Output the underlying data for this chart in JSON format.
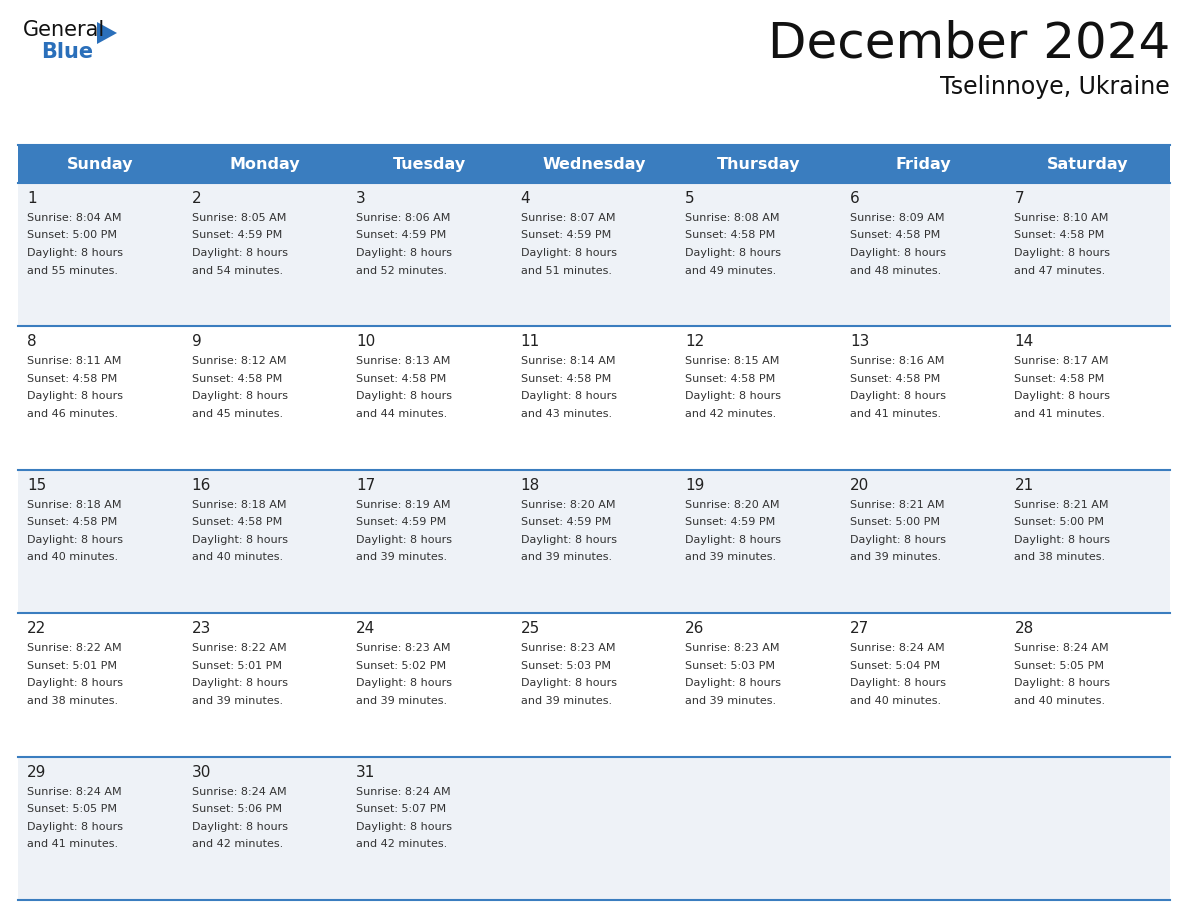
{
  "title": "December 2024",
  "subtitle": "Tselinnoye, Ukraine",
  "days_of_week": [
    "Sunday",
    "Monday",
    "Tuesday",
    "Wednesday",
    "Thursday",
    "Friday",
    "Saturday"
  ],
  "header_bg": "#3a7dbf",
  "header_text_color": "#ffffff",
  "cell_bg_odd": "#eef2f7",
  "cell_bg_even": "#ffffff",
  "grid_line_color": "#3a7dbf",
  "day_num_color": "#222222",
  "cell_text_color": "#333333",
  "title_color": "#111111",
  "subtitle_color": "#111111",
  "logo_general_color": "#111111",
  "logo_blue_color": "#2a6fba",
  "weeks": [
    [
      {
        "day": 1,
        "sunrise": "8:04 AM",
        "sunset": "5:00 PM",
        "daylight": "8 hours and 55 minutes."
      },
      {
        "day": 2,
        "sunrise": "8:05 AM",
        "sunset": "4:59 PM",
        "daylight": "8 hours and 54 minutes."
      },
      {
        "day": 3,
        "sunrise": "8:06 AM",
        "sunset": "4:59 PM",
        "daylight": "8 hours and 52 minutes."
      },
      {
        "day": 4,
        "sunrise": "8:07 AM",
        "sunset": "4:59 PM",
        "daylight": "8 hours and 51 minutes."
      },
      {
        "day": 5,
        "sunrise": "8:08 AM",
        "sunset": "4:58 PM",
        "daylight": "8 hours and 49 minutes."
      },
      {
        "day": 6,
        "sunrise": "8:09 AM",
        "sunset": "4:58 PM",
        "daylight": "8 hours and 48 minutes."
      },
      {
        "day": 7,
        "sunrise": "8:10 AM",
        "sunset": "4:58 PM",
        "daylight": "8 hours and 47 minutes."
      }
    ],
    [
      {
        "day": 8,
        "sunrise": "8:11 AM",
        "sunset": "4:58 PM",
        "daylight": "8 hours and 46 minutes."
      },
      {
        "day": 9,
        "sunrise": "8:12 AM",
        "sunset": "4:58 PM",
        "daylight": "8 hours and 45 minutes."
      },
      {
        "day": 10,
        "sunrise": "8:13 AM",
        "sunset": "4:58 PM",
        "daylight": "8 hours and 44 minutes."
      },
      {
        "day": 11,
        "sunrise": "8:14 AM",
        "sunset": "4:58 PM",
        "daylight": "8 hours and 43 minutes."
      },
      {
        "day": 12,
        "sunrise": "8:15 AM",
        "sunset": "4:58 PM",
        "daylight": "8 hours and 42 minutes."
      },
      {
        "day": 13,
        "sunrise": "8:16 AM",
        "sunset": "4:58 PM",
        "daylight": "8 hours and 41 minutes."
      },
      {
        "day": 14,
        "sunrise": "8:17 AM",
        "sunset": "4:58 PM",
        "daylight": "8 hours and 41 minutes."
      }
    ],
    [
      {
        "day": 15,
        "sunrise": "8:18 AM",
        "sunset": "4:58 PM",
        "daylight": "8 hours and 40 minutes."
      },
      {
        "day": 16,
        "sunrise": "8:18 AM",
        "sunset": "4:58 PM",
        "daylight": "8 hours and 40 minutes."
      },
      {
        "day": 17,
        "sunrise": "8:19 AM",
        "sunset": "4:59 PM",
        "daylight": "8 hours and 39 minutes."
      },
      {
        "day": 18,
        "sunrise": "8:20 AM",
        "sunset": "4:59 PM",
        "daylight": "8 hours and 39 minutes."
      },
      {
        "day": 19,
        "sunrise": "8:20 AM",
        "sunset": "4:59 PM",
        "daylight": "8 hours and 39 minutes."
      },
      {
        "day": 20,
        "sunrise": "8:21 AM",
        "sunset": "5:00 PM",
        "daylight": "8 hours and 39 minutes."
      },
      {
        "day": 21,
        "sunrise": "8:21 AM",
        "sunset": "5:00 PM",
        "daylight": "8 hours and 38 minutes."
      }
    ],
    [
      {
        "day": 22,
        "sunrise": "8:22 AM",
        "sunset": "5:01 PM",
        "daylight": "8 hours and 38 minutes."
      },
      {
        "day": 23,
        "sunrise": "8:22 AM",
        "sunset": "5:01 PM",
        "daylight": "8 hours and 39 minutes."
      },
      {
        "day": 24,
        "sunrise": "8:23 AM",
        "sunset": "5:02 PM",
        "daylight": "8 hours and 39 minutes."
      },
      {
        "day": 25,
        "sunrise": "8:23 AM",
        "sunset": "5:03 PM",
        "daylight": "8 hours and 39 minutes."
      },
      {
        "day": 26,
        "sunrise": "8:23 AM",
        "sunset": "5:03 PM",
        "daylight": "8 hours and 39 minutes."
      },
      {
        "day": 27,
        "sunrise": "8:24 AM",
        "sunset": "5:04 PM",
        "daylight": "8 hours and 40 minutes."
      },
      {
        "day": 28,
        "sunrise": "8:24 AM",
        "sunset": "5:05 PM",
        "daylight": "8 hours and 40 minutes."
      }
    ],
    [
      {
        "day": 29,
        "sunrise": "8:24 AM",
        "sunset": "5:05 PM",
        "daylight": "8 hours and 41 minutes."
      },
      {
        "day": 30,
        "sunrise": "8:24 AM",
        "sunset": "5:06 PM",
        "daylight": "8 hours and 42 minutes."
      },
      {
        "day": 31,
        "sunrise": "8:24 AM",
        "sunset": "5:07 PM",
        "daylight": "8 hours and 42 minutes."
      },
      null,
      null,
      null,
      null
    ]
  ]
}
